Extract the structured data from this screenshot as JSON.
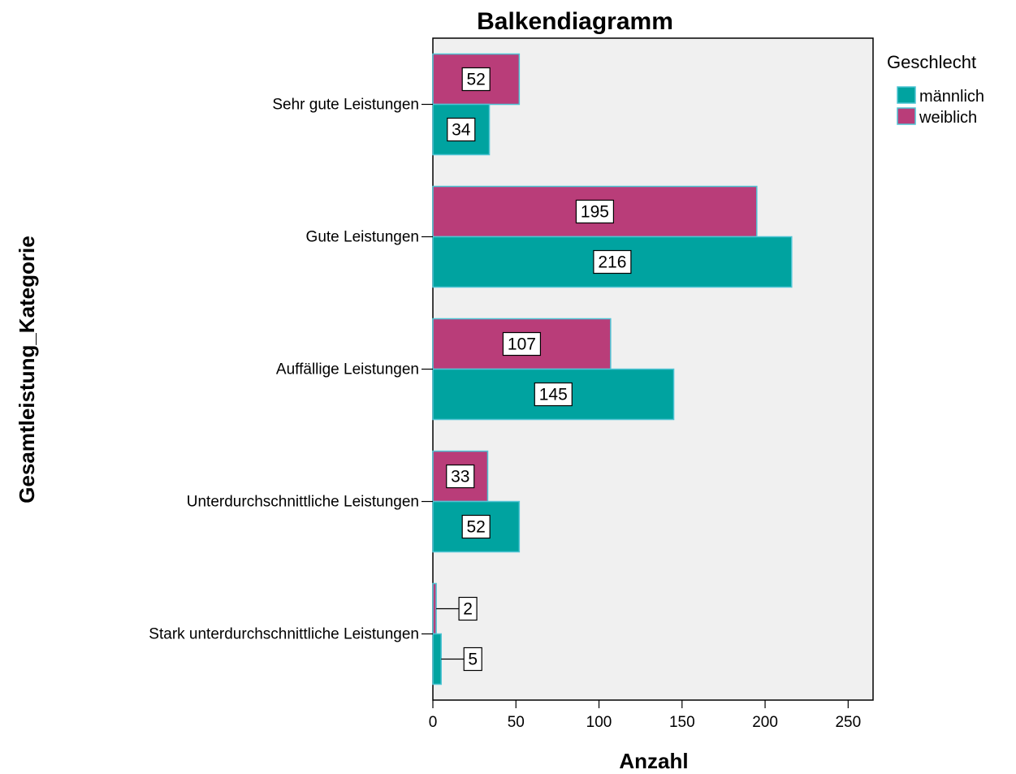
{
  "chart_data": {
    "type": "bar",
    "orientation": "horizontal",
    "title": "Balkendiagramm",
    "xlabel": "Anzahl",
    "ylabel": "Gesamtleistung_Kategorie",
    "xlim": [
      0,
      265
    ],
    "xticks": [
      0,
      50,
      100,
      150,
      200,
      250
    ],
    "xtick_labels": [
      "0",
      "50",
      "100",
      "150",
      "200",
      "250"
    ],
    "grid": false,
    "categories": [
      "Sehr gute Leistungen",
      "Gute Leistungen",
      "Auffällige Leistungen",
      "Unterdurchschnittliche Leistungen",
      "Stark unterdurchschnittliche Leistungen"
    ],
    "series": [
      {
        "name": "männlich",
        "color": "#00a3a0",
        "values": [
          34,
          216,
          145,
          52,
          5
        ]
      },
      {
        "name": "weiblich",
        "color": "#b93d79",
        "values": [
          52,
          195,
          107,
          33,
          2
        ]
      }
    ],
    "legend": {
      "title": "Geschlecht",
      "placement": "right",
      "entries": [
        "männlich",
        "weiblich"
      ]
    },
    "data_labels": true,
    "colors": {
      "plot_background": "#f0f0f0",
      "bar_outline": "#4fc4d4",
      "axis": "#000000"
    }
  }
}
